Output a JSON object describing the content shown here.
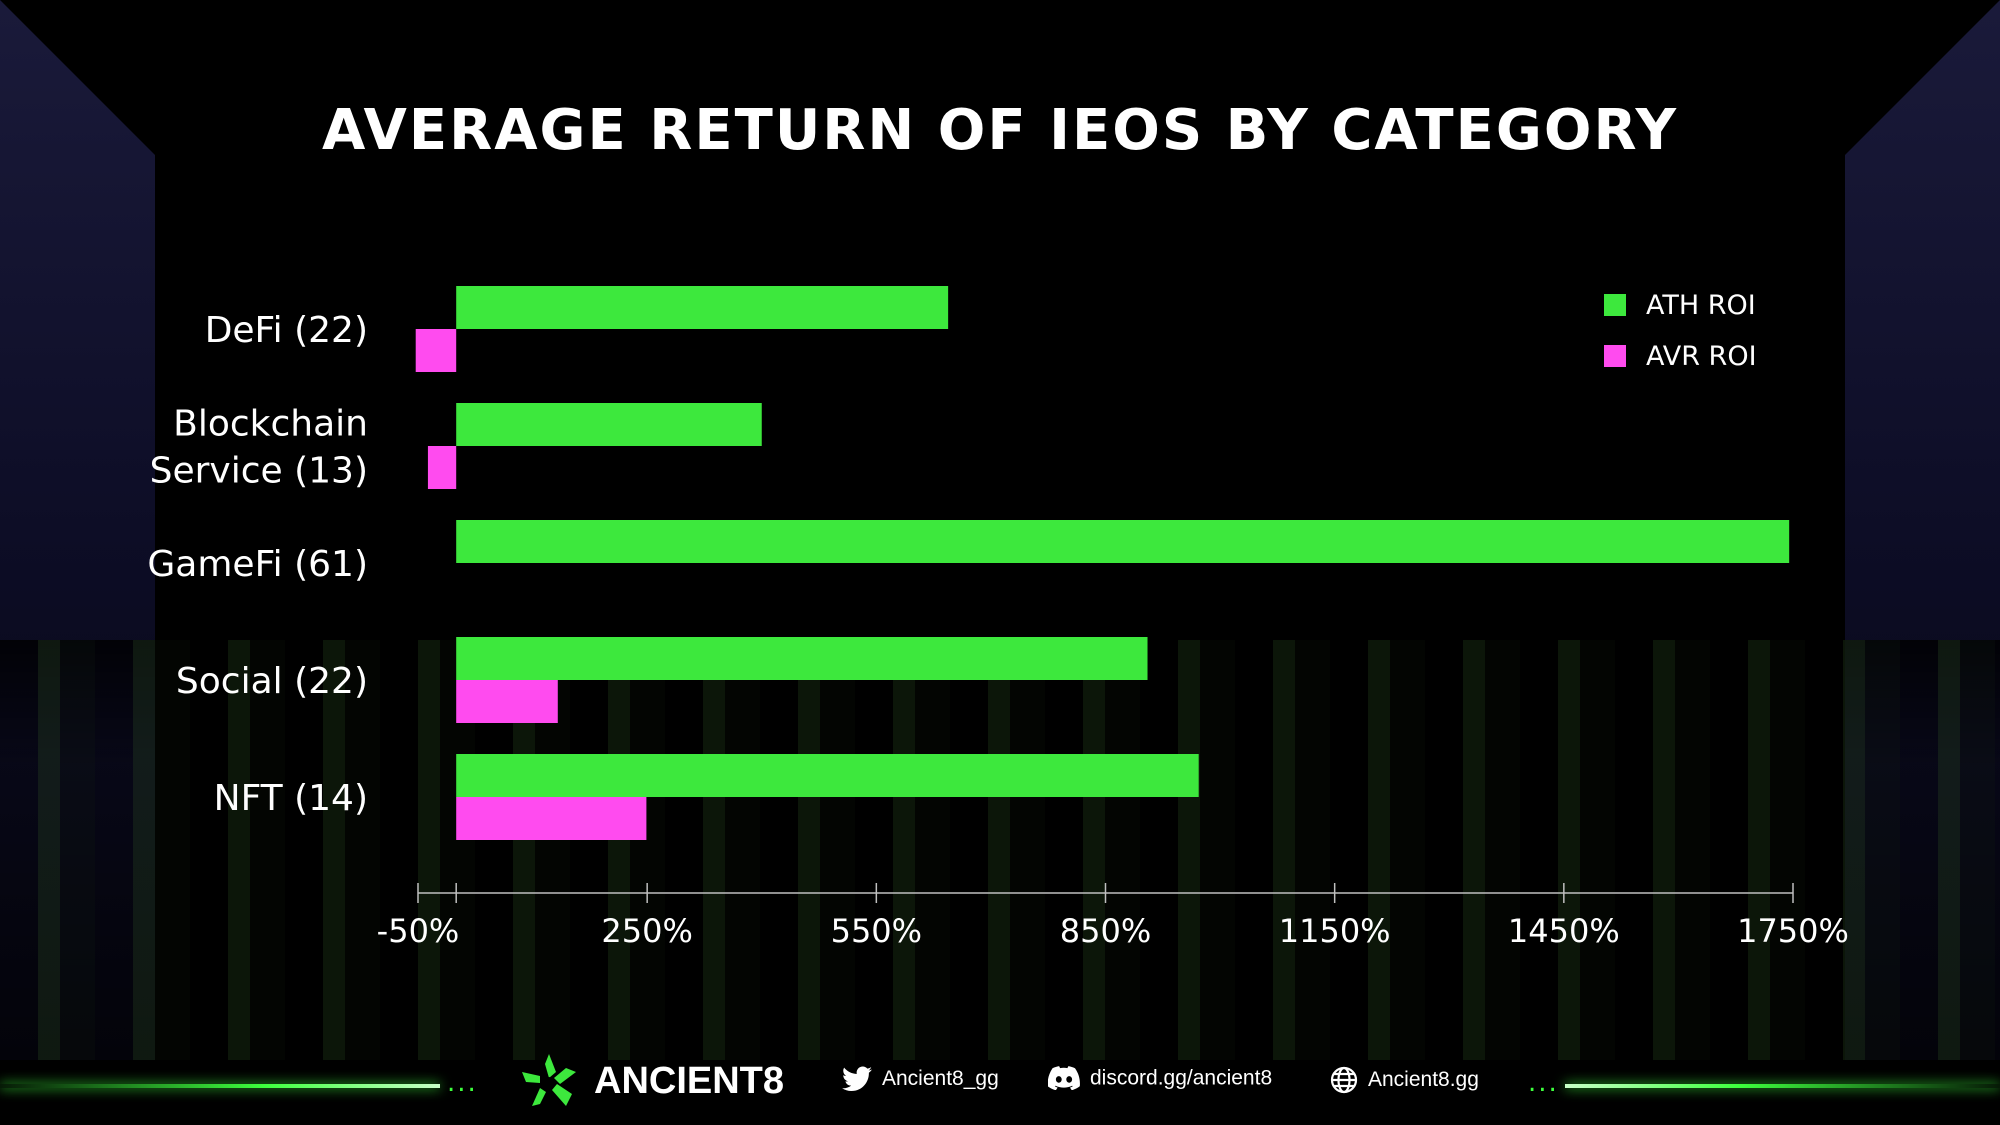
{
  "title": "AVERAGE RETURN OF IEOS BY CATEGORY",
  "chart_data": {
    "type": "bar",
    "orientation": "horizontal",
    "title": "AVERAGE RETURN OF IEOS BY CATEGORY",
    "categories": [
      "DeFi (22)",
      "Blockchain Service (13)",
      "GameFi (61)",
      "Social (22)",
      "NFT (14)"
    ],
    "category_lines": [
      [
        "DeFi (22)"
      ],
      [
        "Blockchain",
        "Service (13)"
      ],
      [
        "GameFi (61)"
      ],
      [
        "Social (22)"
      ],
      [
        "NFT (14)"
      ]
    ],
    "series": [
      {
        "name": "ATH ROI",
        "color": "#3de83d",
        "values": [
          644,
          400,
          1745,
          905,
          972
        ]
      },
      {
        "name": "AVR ROI",
        "color": "#ff4bef",
        "values": [
          -53,
          -37,
          0,
          133,
          249
        ]
      }
    ],
    "xlim": [
      -50,
      1750
    ],
    "xticks": [
      -50,
      250,
      550,
      850,
      1150,
      1450,
      1750
    ],
    "xtick_labels": [
      "-50%",
      "250%",
      "550%",
      "850%",
      "1150%",
      "1450%",
      "1750%"
    ],
    "legend_position": "top-right",
    "grid": false
  },
  "footer": {
    "brand": "ANCIENT8",
    "twitter": "Ancient8_gg",
    "discord": "discord.gg/ancient8",
    "website": "Ancient8.gg",
    "dots": "..."
  },
  "colors": {
    "accent": "#3dff3d",
    "background": "#000000"
  }
}
